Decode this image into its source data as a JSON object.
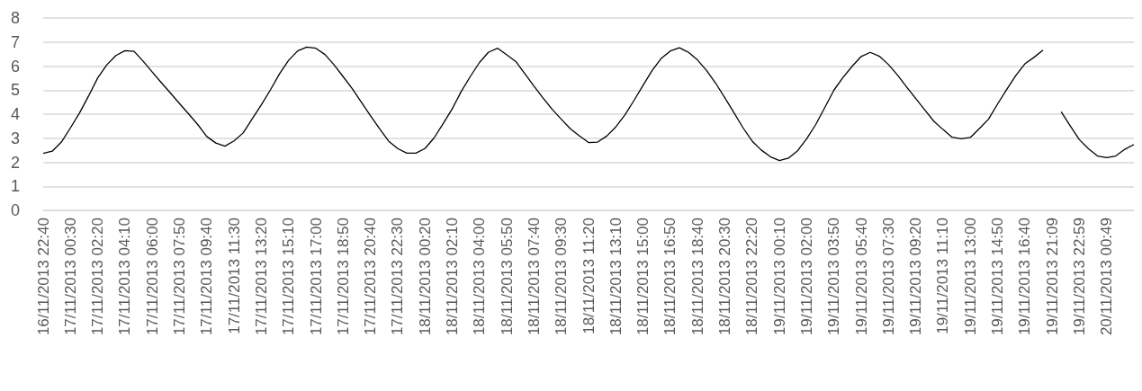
{
  "chart_data": {
    "type": "line",
    "categories": [
      "16/11/2013 22:40",
      null,
      null,
      "17/11/2013 00:30",
      null,
      null,
      "17/11/2013 02:20",
      null,
      null,
      "17/11/2013 04:10",
      null,
      null,
      "17/11/2013 06:00",
      null,
      null,
      "17/11/2013 07:50",
      null,
      null,
      "17/11/2013 09:40",
      null,
      null,
      "17/11/2013 11:30",
      null,
      null,
      "17/11/2013 13:20",
      null,
      null,
      "17/11/2013 15:10",
      null,
      null,
      "17/11/2013 17:00",
      null,
      null,
      "17/11/2013 18:50",
      null,
      null,
      "17/11/2013 20:40",
      null,
      null,
      "17/11/2013 22:30",
      null,
      null,
      "18/11/2013 00:20",
      null,
      null,
      "18/11/2013 02:10",
      null,
      null,
      "18/11/2013 04:00",
      null,
      null,
      "18/11/2013 05:50",
      null,
      null,
      "18/11/2013 07:40",
      null,
      null,
      "18/11/2013 09:30",
      null,
      null,
      "18/11/2013 11:20",
      null,
      null,
      "18/11/2013 13:10",
      null,
      null,
      "18/11/2013 15:00",
      null,
      null,
      "18/11/2013 16:50",
      null,
      null,
      "18/11/2013 18:40",
      null,
      null,
      "18/11/2013 20:30",
      null,
      null,
      "18/11/2013 22:20",
      null,
      null,
      "19/11/2013 00:10",
      null,
      null,
      "19/11/2013 02:00",
      null,
      null,
      "19/11/2013 03:50",
      null,
      null,
      "19/11/2013 05:40",
      null,
      null,
      "19/11/2013 07:30",
      null,
      null,
      "19/11/2013 09:20",
      null,
      null,
      "19/11/2013 11:10",
      null,
      null,
      "19/11/2013 13:00",
      null,
      null,
      "19/11/2013 14:50",
      null,
      null,
      "19/11/2013 16:40",
      null,
      null,
      "19/11/2013 21:09",
      null,
      null,
      "19/11/2013 22:59",
      null,
      null,
      "20/11/2013 00:49",
      null,
      null,
      null
    ],
    "series": [
      {
        "color": "#000000",
        "values": [
          2.37,
          2.46,
          2.84,
          3.43,
          4.05,
          4.76,
          5.51,
          6.05,
          6.44,
          6.64,
          6.61,
          6.2,
          5.75,
          5.31,
          4.88,
          4.44,
          4.01,
          3.57,
          3.07,
          2.8,
          2.67,
          2.89,
          3.22,
          3.81,
          4.39,
          5.01,
          5.68,
          6.24,
          6.63,
          6.79,
          6.74,
          6.48,
          6.05,
          5.56,
          5.06,
          4.5,
          3.94,
          3.4,
          2.88,
          2.57,
          2.38,
          2.38,
          2.57,
          3.01,
          3.6,
          4.22,
          4.95,
          5.57,
          6.15,
          6.58,
          6.74,
          6.47,
          6.19,
          5.68,
          5.16,
          4.67,
          4.2,
          3.79,
          3.39,
          3.09,
          2.82,
          2.84,
          3.09,
          3.47,
          3.97,
          4.57,
          5.2,
          5.82,
          6.32,
          6.63,
          6.76,
          6.57,
          6.25,
          5.81,
          5.28,
          4.68,
          4.06,
          3.43,
          2.88,
          2.51,
          2.23,
          2.07,
          2.17,
          2.48,
          2.98,
          3.57,
          4.28,
          5.0,
          5.53,
          5.99,
          6.4,
          6.57,
          6.41,
          6.06,
          5.62,
          5.13,
          4.65,
          4.17,
          3.7,
          3.36,
          3.04,
          2.98,
          3.03,
          3.4,
          3.79,
          4.42,
          5.02,
          5.6,
          6.09,
          6.36,
          6.66,
          null,
          4.1,
          3.51,
          2.94,
          2.56,
          2.26,
          2.19,
          2.26,
          2.54,
          2.74
        ]
      }
    ],
    "ylim": [
      0,
      8
    ],
    "yticks": [
      0,
      1,
      2,
      3,
      4,
      5,
      6,
      7,
      8
    ],
    "grid": "y"
  }
}
